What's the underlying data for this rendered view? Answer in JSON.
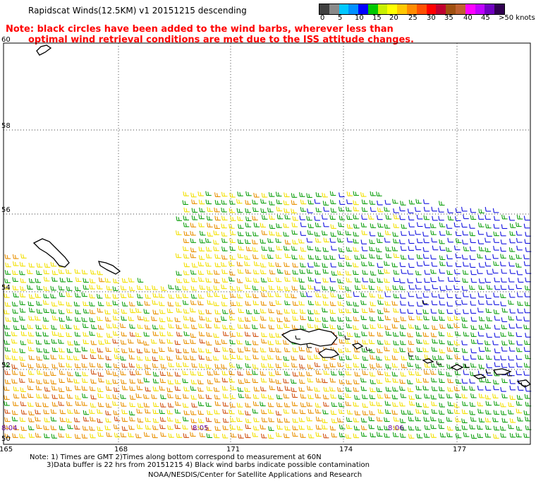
{
  "header": {
    "title": "Rapidscat Winds(12.5KM)  v1  20151215  descending",
    "note_line1": "Note: black circles have been added to the wind barbs, wherever less than",
    "note_line2": "optimal wind retrieval conditions are met due to the ISS attitude changes."
  },
  "colorbar": {
    "colors": [
      "#404040",
      "#8a8a8a",
      "#00c8ff",
      "#0090ff",
      "#0000ff",
      "#00c800",
      "#c8f000",
      "#ffff00",
      "#ffc800",
      "#ff8c00",
      "#ff5000",
      "#ff0000",
      "#c00030",
      "#a05010",
      "#c06030",
      "#ff00ff",
      "#c000ff",
      "#7000c0",
      "#300050"
    ],
    "labels": [
      "0",
      "5",
      "10",
      "15",
      "20",
      "25",
      "30",
      "35",
      "40",
      "45"
    ],
    "units": ">50 knots"
  },
  "map": {
    "lat_labels": [
      "60",
      "58",
      "56",
      "54",
      "52",
      "50"
    ],
    "lon_labels": [
      "165",
      "168",
      "171",
      "174",
      "177"
    ],
    "time_labels": [
      "8:04",
      "8:05",
      "8:06"
    ],
    "barb_colors": {
      "blue": "#1010e0",
      "green": "#10a010",
      "yellow": "#f2e000",
      "orange": "#e89000",
      "darkorange": "#d05010",
      "black": "#000000"
    }
  },
  "footer": {
    "line1": "Note: 1) Times are GMT 2)Times along bottom correspond to measurement at 60N",
    "line2": "3)Data buffer is 22 hrs from 20151215 4) Black wind barbs indicate possible contamination",
    "line3": "NOAA/NESDIS/Center for Satellite Applications and Research"
  }
}
